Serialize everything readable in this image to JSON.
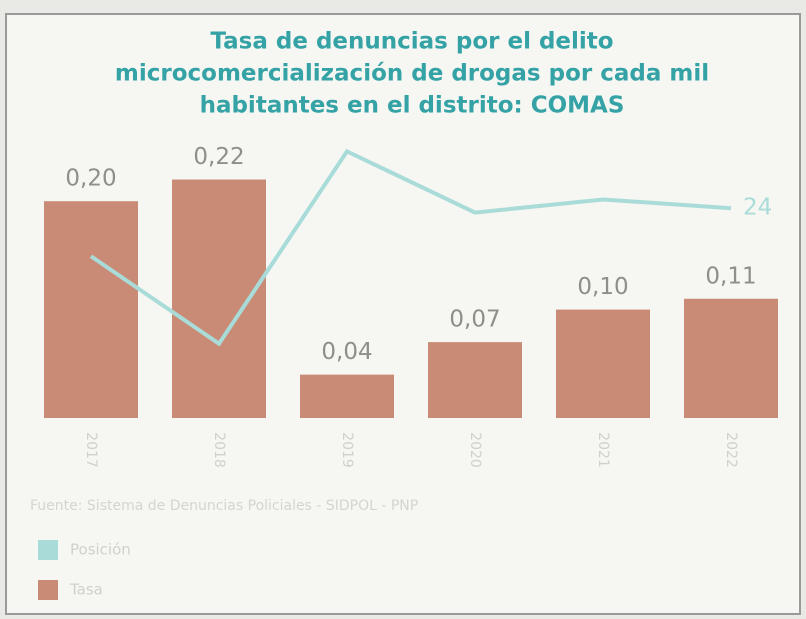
{
  "chart_data": {
    "type": "bar-line",
    "title": [
      "Tasa de denuncias por el delito",
      "microcomercialización de drogas por cada mil",
      "habitantes en el distrito: COMAS"
    ],
    "source": "Fuente: Sistema de Denuncias Policiales - SIDPOL - PNP",
    "categories": [
      "2017",
      "2018",
      "2019",
      "2020",
      "2021",
      "2022"
    ],
    "series": [
      {
        "name": "Posición",
        "color": "#a9dcd8",
        "axis": "y2",
        "type": "line",
        "values": [
          18.5,
          8.5,
          30.5,
          23.5,
          25,
          24
        ],
        "value_labels": [
          null,
          null,
          null,
          null,
          null,
          "24"
        ]
      },
      {
        "name": "Tasa",
        "color": "#c98b75",
        "type": "bar",
        "values": [
          0.2,
          0.22,
          0.04,
          0.07,
          0.1,
          0.11
        ],
        "value_labels": [
          "0,20",
          "0,22",
          "0,04",
          "0,07",
          "0,10",
          "0,11"
        ]
      }
    ],
    "ylim": [
      0,
      0.25
    ],
    "y2lim": [
      0,
      31
    ]
  }
}
